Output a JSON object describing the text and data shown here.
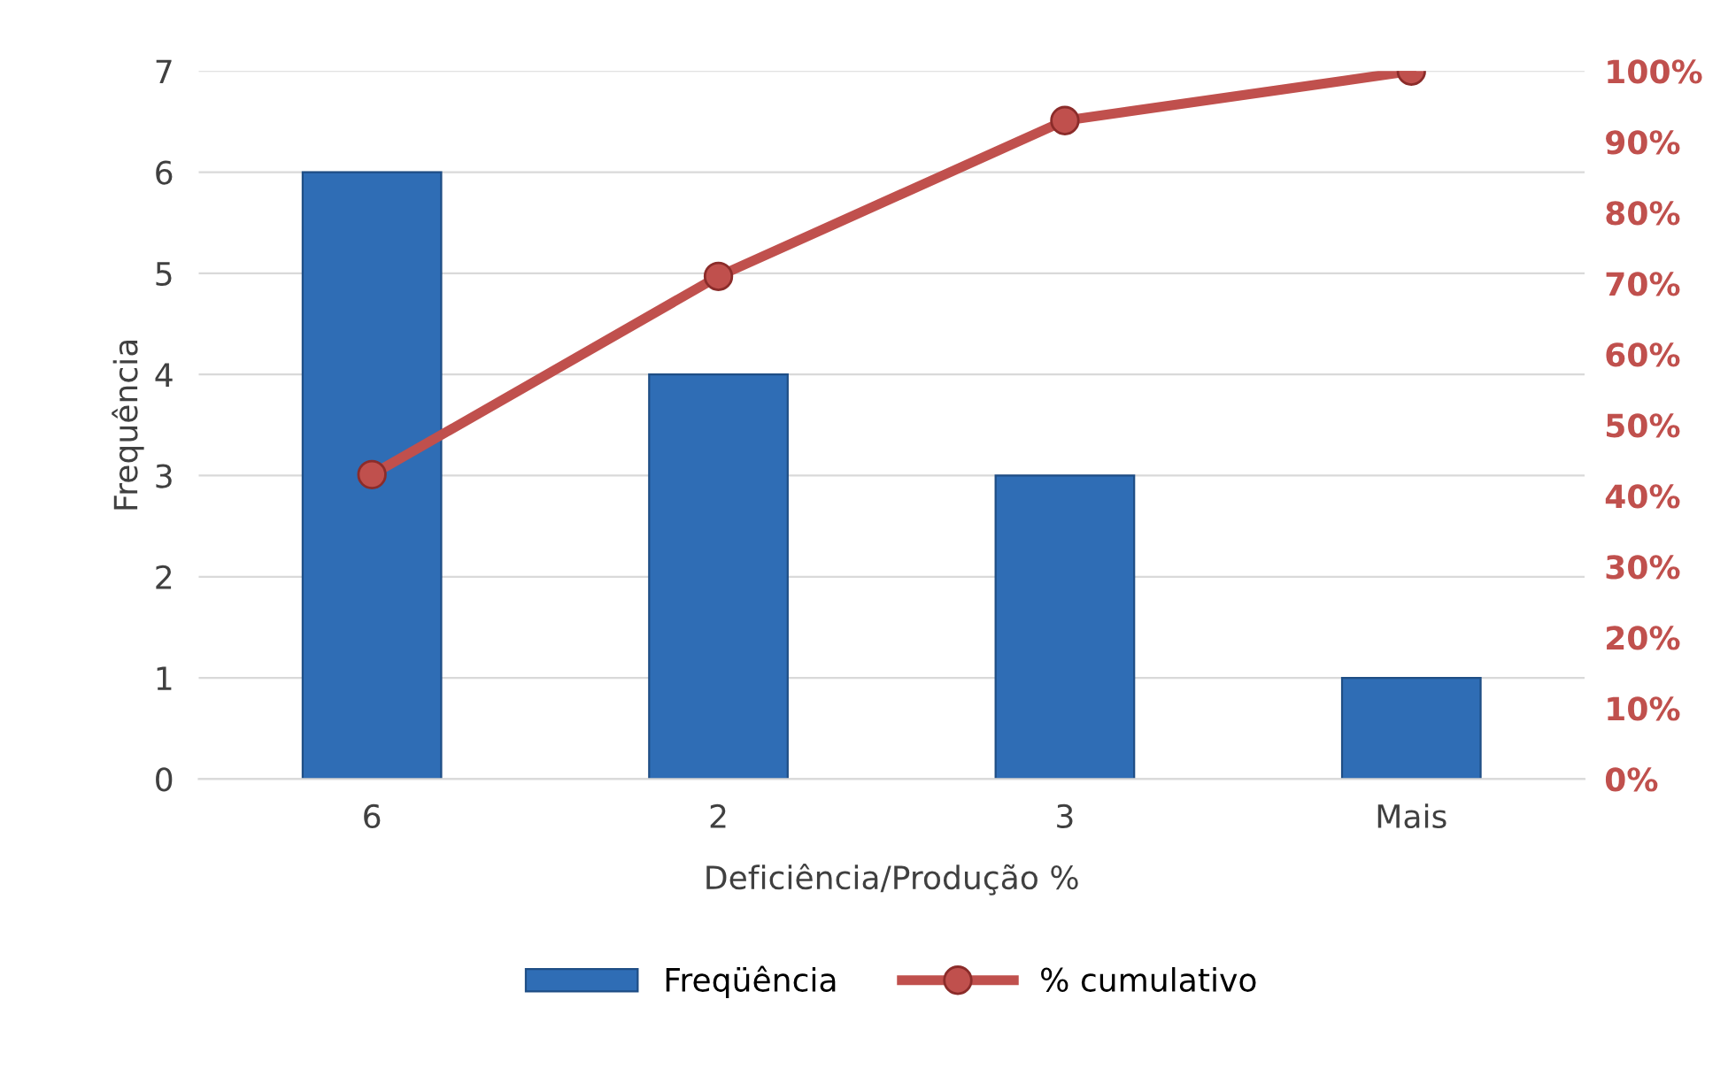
{
  "chart_data": {
    "type": "bar",
    "xlabel": "Deficiência/Produção %",
    "ylabel": "Frequência",
    "categories": [
      "6",
      "2",
      "3",
      "Mais"
    ],
    "series": [
      {
        "name": "Freqüência",
        "color": "#2f6db5",
        "values": [
          6,
          4,
          3,
          1
        ]
      },
      {
        "name": "% cumulativo",
        "type": "line",
        "axis": "y2",
        "color": "#c0504d",
        "marker": "circle",
        "values": [
          43,
          71,
          93,
          100
        ]
      }
    ],
    "ylim": [
      0,
      7
    ],
    "yticks": [
      0,
      1,
      2,
      3,
      4,
      5,
      6,
      7
    ],
    "y2lim": [
      0,
      100
    ],
    "y2ticks": [
      {
        "value": 0,
        "label": "0%"
      },
      {
        "value": 10,
        "label": "10%"
      },
      {
        "value": 20,
        "label": "20%"
      },
      {
        "value": 30,
        "label": "30%"
      },
      {
        "value": 40,
        "label": "40%"
      },
      {
        "value": 50,
        "label": "50%"
      },
      {
        "value": 60,
        "label": "60%"
      },
      {
        "value": 70,
        "label": "70%"
      },
      {
        "value": 80,
        "label": "80%"
      },
      {
        "value": 90,
        "label": "90%"
      },
      {
        "value": 100,
        "label": "100%"
      }
    ],
    "grid": "y",
    "legend": "bottom"
  }
}
